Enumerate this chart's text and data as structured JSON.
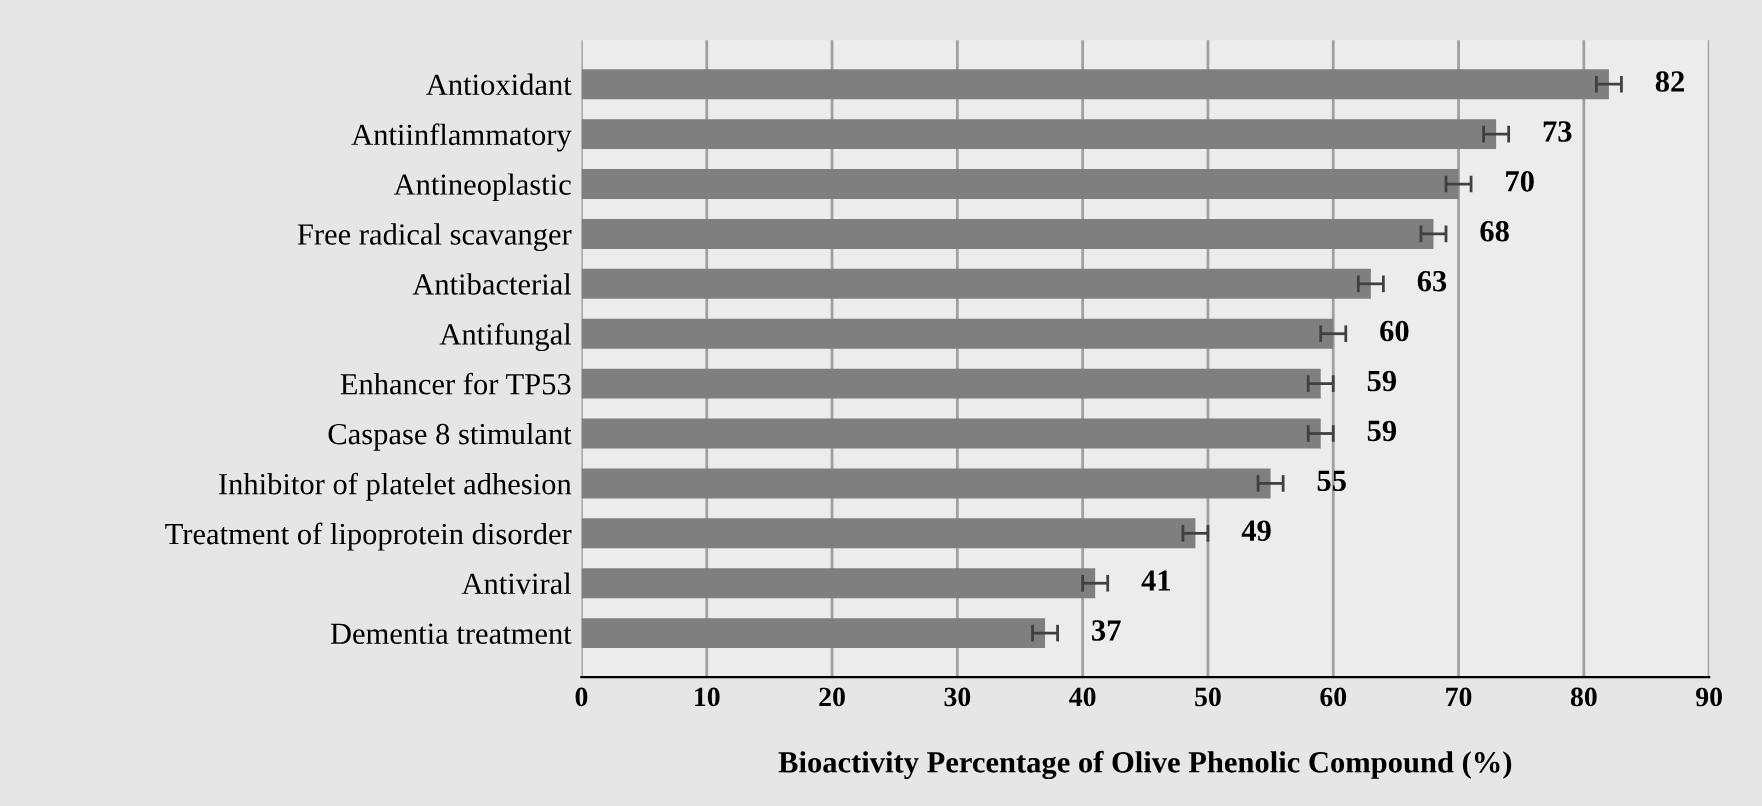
{
  "chart_data": {
    "type": "bar",
    "orientation": "horizontal",
    "xlabel": "Bioactivity Percentage of Olive Phenolic Compound (%)",
    "categories": [
      "Antioxidant",
      "Antiinflammatory",
      "Antineoplastic",
      "Free radical scavanger",
      "Antibacterial",
      "Antifungal",
      "Enhancer for TP53",
      "Caspase 8 stimulant",
      "Inhibitor of platelet adhesion",
      "Treatment of lipoprotein disorder",
      "Antiviral",
      "Dementia treatment"
    ],
    "values": [
      82,
      73,
      70,
      68,
      63,
      60,
      59,
      59,
      55,
      49,
      41,
      37
    ],
    "errors": [
      1,
      1,
      1,
      1,
      1,
      1,
      1,
      1,
      1,
      1,
      1,
      1
    ],
    "color": "#7f7f7f",
    "data_labels": true,
    "grid": "x",
    "xlim": [
      0,
      90
    ],
    "xticks": [
      0,
      10,
      20,
      30,
      40,
      50,
      60,
      70,
      80,
      90
    ]
  }
}
